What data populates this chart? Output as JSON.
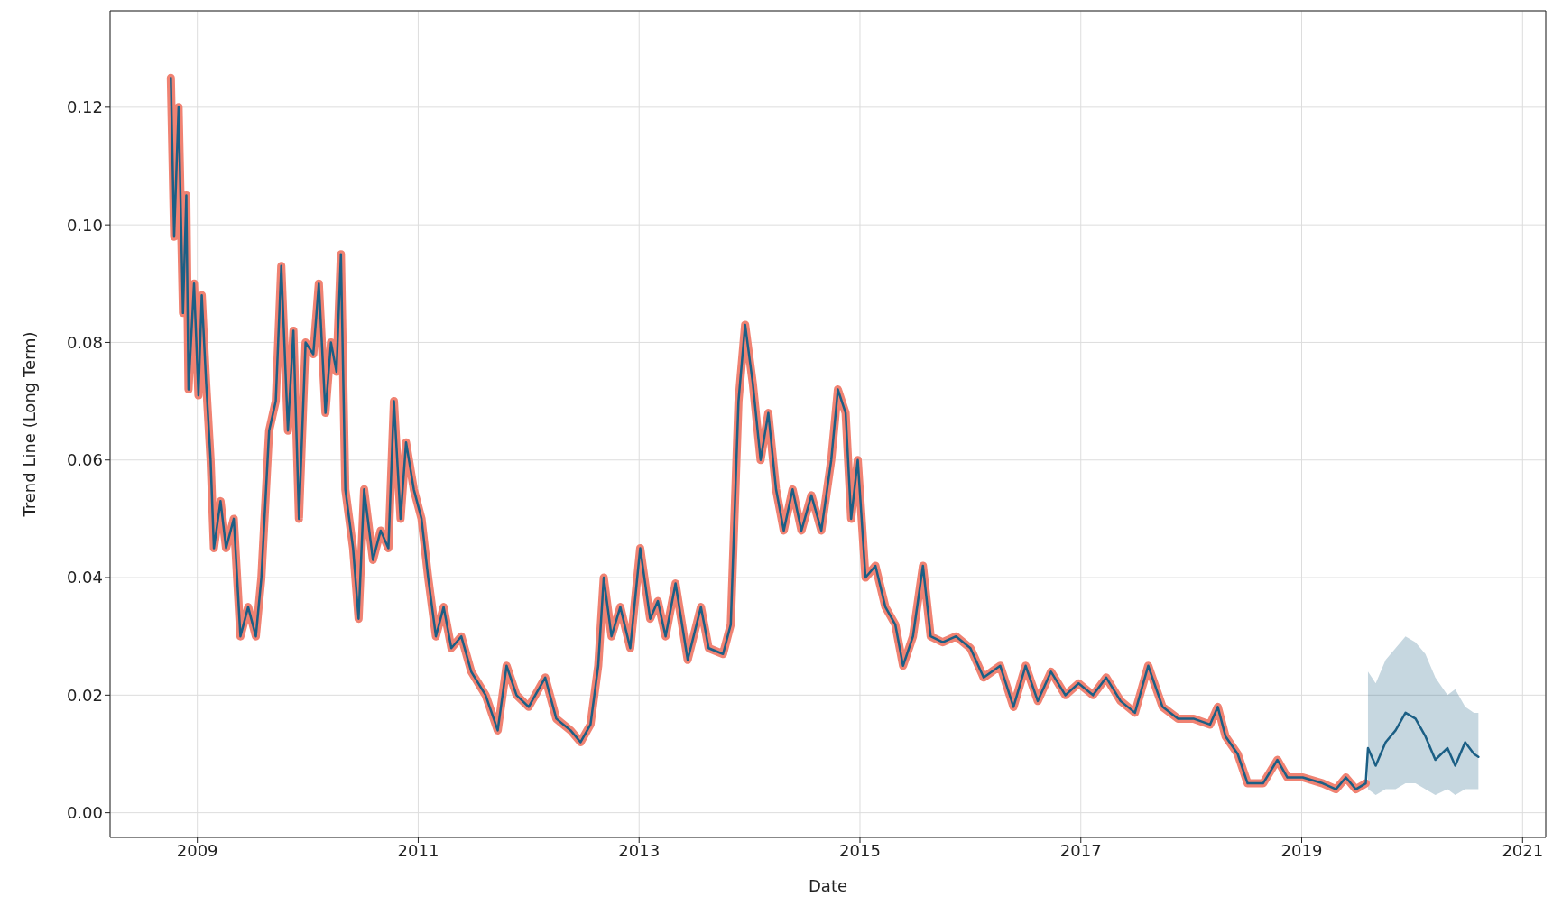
{
  "chart_data": {
    "type": "line",
    "xlabel": "Date",
    "ylabel": "Trend Line (Long Term)",
    "xlim": [
      2008.21,
      2021.21
    ],
    "ylim": [
      -0.0042,
      0.1364
    ],
    "xticks": [
      2009,
      2011,
      2013,
      2015,
      2017,
      2019,
      2021
    ],
    "yticks": [
      {
        "value": 0,
        "label": "0.00"
      },
      {
        "value": 0.02,
        "label": "0.02"
      },
      {
        "value": 0.04,
        "label": "0.04"
      },
      {
        "value": 0.06,
        "label": "0.06"
      },
      {
        "value": 0.08,
        "label": "0.08"
      },
      {
        "value": 0.1,
        "label": "0.10"
      },
      {
        "value": 0.12,
        "label": "0.12"
      }
    ],
    "grid": true,
    "legend": false,
    "marker": "none",
    "line_style": "solid",
    "series": [
      {
        "color": "#f08272",
        "x": [
          2008.76,
          2008.79,
          2008.83,
          2008.87,
          2008.9,
          2008.92,
          2008.97,
          2009.01,
          2009.04,
          2009.08,
          2009.12,
          2009.15,
          2009.21,
          2009.26,
          2009.33,
          2009.39,
          2009.46,
          2009.53,
          2009.58,
          2009.65,
          2009.71,
          2009.76,
          2009.82,
          2009.87,
          2009.92,
          2009.98,
          2010.05,
          2010.1,
          2010.16,
          2010.21,
          2010.26,
          2010.3,
          2010.34,
          2010.41,
          2010.46,
          2010.51,
          2010.59,
          2010.66,
          2010.73,
          2010.78,
          2010.84,
          2010.89,
          2010.96,
          2011.03,
          2011.09,
          2011.16,
          2011.23,
          2011.3,
          2011.39,
          2011.48,
          2011.61,
          2011.72,
          2011.8,
          2011.89,
          2012.0,
          2012.15,
          2012.25,
          2012.38,
          2012.47,
          2012.56,
          2012.63,
          2012.68,
          2012.75,
          2012.83,
          2012.92,
          2013.01,
          2013.1,
          2013.17,
          2013.24,
          2013.33,
          2013.44,
          2013.56,
          2013.63,
          2013.76,
          2013.83,
          2013.9,
          2013.96,
          2014.03,
          2014.1,
          2014.17,
          2014.24,
          2014.31,
          2014.39,
          2014.47,
          2014.56,
          2014.65,
          2014.74,
          2014.8,
          2014.87,
          2014.92,
          2014.98,
          2015.05,
          2015.14,
          2015.23,
          2015.32,
          2015.39,
          2015.48,
          2015.57,
          2015.64,
          2015.75,
          2015.87,
          2016.0,
          2016.12,
          2016.27,
          2016.39,
          2016.5,
          2016.61,
          2016.73,
          2016.86,
          2016.98,
          2017.11,
          2017.23,
          2017.36,
          2017.49,
          2017.61,
          2017.74,
          2017.88,
          2018.02,
          2018.17,
          2018.24,
          2018.31,
          2018.42,
          2018.51,
          2018.65,
          2018.78,
          2018.87,
          2019.01,
          2019.19,
          2019.31,
          2019.4,
          2019.49,
          2019.58
        ],
        "values": [
          0.125,
          0.098,
          0.12,
          0.085,
          0.105,
          0.072,
          0.09,
          0.071,
          0.088,
          0.073,
          0.06,
          0.045,
          0.053,
          0.045,
          0.05,
          0.03,
          0.035,
          0.03,
          0.04,
          0.065,
          0.07,
          0.093,
          0.065,
          0.082,
          0.05,
          0.08,
          0.078,
          0.09,
          0.068,
          0.08,
          0.075,
          0.095,
          0.055,
          0.045,
          0.033,
          0.055,
          0.043,
          0.048,
          0.045,
          0.07,
          0.05,
          0.063,
          0.055,
          0.05,
          0.04,
          0.03,
          0.035,
          0.028,
          0.03,
          0.024,
          0.02,
          0.014,
          0.025,
          0.02,
          0.018,
          0.023,
          0.016,
          0.014,
          0.012,
          0.015,
          0.025,
          0.04,
          0.03,
          0.035,
          0.028,
          0.045,
          0.033,
          0.036,
          0.03,
          0.039,
          0.026,
          0.035,
          0.028,
          0.027,
          0.032,
          0.07,
          0.083,
          0.073,
          0.06,
          0.068,
          0.055,
          0.048,
          0.055,
          0.048,
          0.054,
          0.048,
          0.06,
          0.072,
          0.068,
          0.05,
          0.06,
          0.04,
          0.042,
          0.035,
          0.032,
          0.025,
          0.03,
          0.042,
          0.03,
          0.029,
          0.03,
          0.028,
          0.023,
          0.025,
          0.018,
          0.025,
          0.019,
          0.024,
          0.02,
          0.022,
          0.02,
          0.023,
          0.019,
          0.017,
          0.025,
          0.018,
          0.016,
          0.016,
          0.015,
          0.018,
          0.013,
          0.01,
          0.005,
          0.005,
          0.009,
          0.006,
          0.006,
          0.005,
          0.004,
          0.006,
          0.004,
          0.005
        ]
      },
      {
        "color": "#1b5f85",
        "x": [
          2008.76,
          2008.79,
          2008.83,
          2008.87,
          2008.9,
          2008.92,
          2008.97,
          2009.01,
          2009.04,
          2009.08,
          2009.12,
          2009.15,
          2009.21,
          2009.26,
          2009.33,
          2009.39,
          2009.46,
          2009.53,
          2009.58,
          2009.65,
          2009.71,
          2009.76,
          2009.82,
          2009.87,
          2009.92,
          2009.98,
          2010.05,
          2010.1,
          2010.16,
          2010.21,
          2010.26,
          2010.3,
          2010.34,
          2010.41,
          2010.46,
          2010.51,
          2010.59,
          2010.66,
          2010.73,
          2010.78,
          2010.84,
          2010.89,
          2010.96,
          2011.03,
          2011.09,
          2011.16,
          2011.23,
          2011.3,
          2011.39,
          2011.48,
          2011.61,
          2011.72,
          2011.8,
          2011.89,
          2012.0,
          2012.15,
          2012.25,
          2012.38,
          2012.47,
          2012.56,
          2012.63,
          2012.68,
          2012.75,
          2012.83,
          2012.92,
          2013.01,
          2013.1,
          2013.17,
          2013.24,
          2013.33,
          2013.44,
          2013.56,
          2013.63,
          2013.76,
          2013.83,
          2013.9,
          2013.96,
          2014.03,
          2014.1,
          2014.17,
          2014.24,
          2014.31,
          2014.39,
          2014.47,
          2014.56,
          2014.65,
          2014.74,
          2014.8,
          2014.87,
          2014.92,
          2014.98,
          2015.05,
          2015.14,
          2015.23,
          2015.32,
          2015.39,
          2015.48,
          2015.57,
          2015.64,
          2015.75,
          2015.87,
          2016.0,
          2016.12,
          2016.27,
          2016.39,
          2016.5,
          2016.61,
          2016.73,
          2016.86,
          2016.98,
          2017.11,
          2017.23,
          2017.36,
          2017.49,
          2017.61,
          2017.74,
          2017.88,
          2018.02,
          2018.17,
          2018.24,
          2018.31,
          2018.42,
          2018.51,
          2018.65,
          2018.78,
          2018.87,
          2019.01,
          2019.19,
          2019.31,
          2019.4,
          2019.49,
          2019.58,
          2019.6,
          2019.67,
          2019.76,
          2019.85,
          2019.94,
          2020.03,
          2020.12,
          2020.21,
          2020.32,
          2020.39,
          2020.48,
          2020.56,
          2020.6
        ],
        "values": [
          0.125,
          0.098,
          0.12,
          0.085,
          0.105,
          0.072,
          0.09,
          0.071,
          0.088,
          0.073,
          0.06,
          0.045,
          0.053,
          0.045,
          0.05,
          0.03,
          0.035,
          0.03,
          0.04,
          0.065,
          0.07,
          0.093,
          0.065,
          0.082,
          0.05,
          0.08,
          0.078,
          0.09,
          0.068,
          0.08,
          0.075,
          0.095,
          0.055,
          0.045,
          0.033,
          0.055,
          0.043,
          0.048,
          0.045,
          0.07,
          0.05,
          0.063,
          0.055,
          0.05,
          0.04,
          0.03,
          0.035,
          0.028,
          0.03,
          0.024,
          0.02,
          0.014,
          0.025,
          0.02,
          0.018,
          0.023,
          0.016,
          0.014,
          0.012,
          0.015,
          0.025,
          0.04,
          0.03,
          0.035,
          0.028,
          0.045,
          0.033,
          0.036,
          0.03,
          0.039,
          0.026,
          0.035,
          0.028,
          0.027,
          0.032,
          0.07,
          0.083,
          0.073,
          0.06,
          0.068,
          0.055,
          0.048,
          0.055,
          0.048,
          0.054,
          0.048,
          0.06,
          0.072,
          0.068,
          0.05,
          0.06,
          0.04,
          0.042,
          0.035,
          0.032,
          0.025,
          0.03,
          0.042,
          0.03,
          0.029,
          0.03,
          0.028,
          0.023,
          0.025,
          0.018,
          0.025,
          0.019,
          0.024,
          0.02,
          0.022,
          0.02,
          0.023,
          0.019,
          0.017,
          0.025,
          0.018,
          0.016,
          0.016,
          0.015,
          0.018,
          0.013,
          0.01,
          0.005,
          0.005,
          0.009,
          0.006,
          0.006,
          0.005,
          0.004,
          0.006,
          0.004,
          0.005,
          0.011,
          0.008,
          0.012,
          0.014,
          0.017,
          0.016,
          0.013,
          0.009,
          0.011,
          0.008,
          0.012,
          0.01,
          0.0095
        ],
        "lower": [
          null,
          null,
          null,
          null,
          null,
          null,
          null,
          null,
          null,
          null,
          null,
          null,
          null,
          null,
          null,
          null,
          null,
          null,
          null,
          null,
          null,
          null,
          null,
          null,
          null,
          null,
          null,
          null,
          null,
          null,
          null,
          null,
          null,
          null,
          null,
          null,
          null,
          null,
          null,
          null,
          null,
          null,
          null,
          null,
          null,
          null,
          null,
          null,
          null,
          null,
          null,
          null,
          null,
          null,
          null,
          null,
          null,
          null,
          null,
          null,
          null,
          null,
          null,
          null,
          null,
          null,
          null,
          null,
          null,
          null,
          null,
          null,
          null,
          null,
          null,
          null,
          null,
          null,
          null,
          null,
          null,
          null,
          null,
          null,
          null,
          null,
          null,
          null,
          null,
          null,
          null,
          null,
          null,
          null,
          null,
          null,
          null,
          null,
          null,
          null,
          null,
          null,
          null,
          null,
          null,
          null,
          null,
          null,
          null,
          null,
          null,
          null,
          null,
          null,
          null,
          null,
          null,
          null,
          null,
          null,
          null,
          null,
          null,
          null,
          null,
          null,
          null,
          null,
          null,
          null,
          null,
          null,
          0.004,
          0.003,
          0.004,
          0.004,
          0.005,
          0.005,
          0.004,
          0.003,
          0.004,
          0.003,
          0.004,
          0.004,
          0.004
        ],
        "upper": [
          null,
          null,
          null,
          null,
          null,
          null,
          null,
          null,
          null,
          null,
          null,
          null,
          null,
          null,
          null,
          null,
          null,
          null,
          null,
          null,
          null,
          null,
          null,
          null,
          null,
          null,
          null,
          null,
          null,
          null,
          null,
          null,
          null,
          null,
          null,
          null,
          null,
          null,
          null,
          null,
          null,
          null,
          null,
          null,
          null,
          null,
          null,
          null,
          null,
          null,
          null,
          null,
          null,
          null,
          null,
          null,
          null,
          null,
          null,
          null,
          null,
          null,
          null,
          null,
          null,
          null,
          null,
          null,
          null,
          null,
          null,
          null,
          null,
          null,
          null,
          null,
          null,
          null,
          null,
          null,
          null,
          null,
          null,
          null,
          null,
          null,
          null,
          null,
          null,
          null,
          null,
          null,
          null,
          null,
          null,
          null,
          null,
          null,
          null,
          null,
          null,
          null,
          null,
          null,
          null,
          null,
          null,
          null,
          null,
          null,
          null,
          null,
          null,
          null,
          null,
          null,
          null,
          null,
          null,
          null,
          null,
          null,
          null,
          null,
          null,
          null,
          null,
          null,
          null,
          null,
          null,
          null,
          0.024,
          0.022,
          0.026,
          0.028,
          0.03,
          0.029,
          0.027,
          0.023,
          0.02,
          0.021,
          0.018,
          0.017,
          0.017
        ]
      }
    ]
  }
}
